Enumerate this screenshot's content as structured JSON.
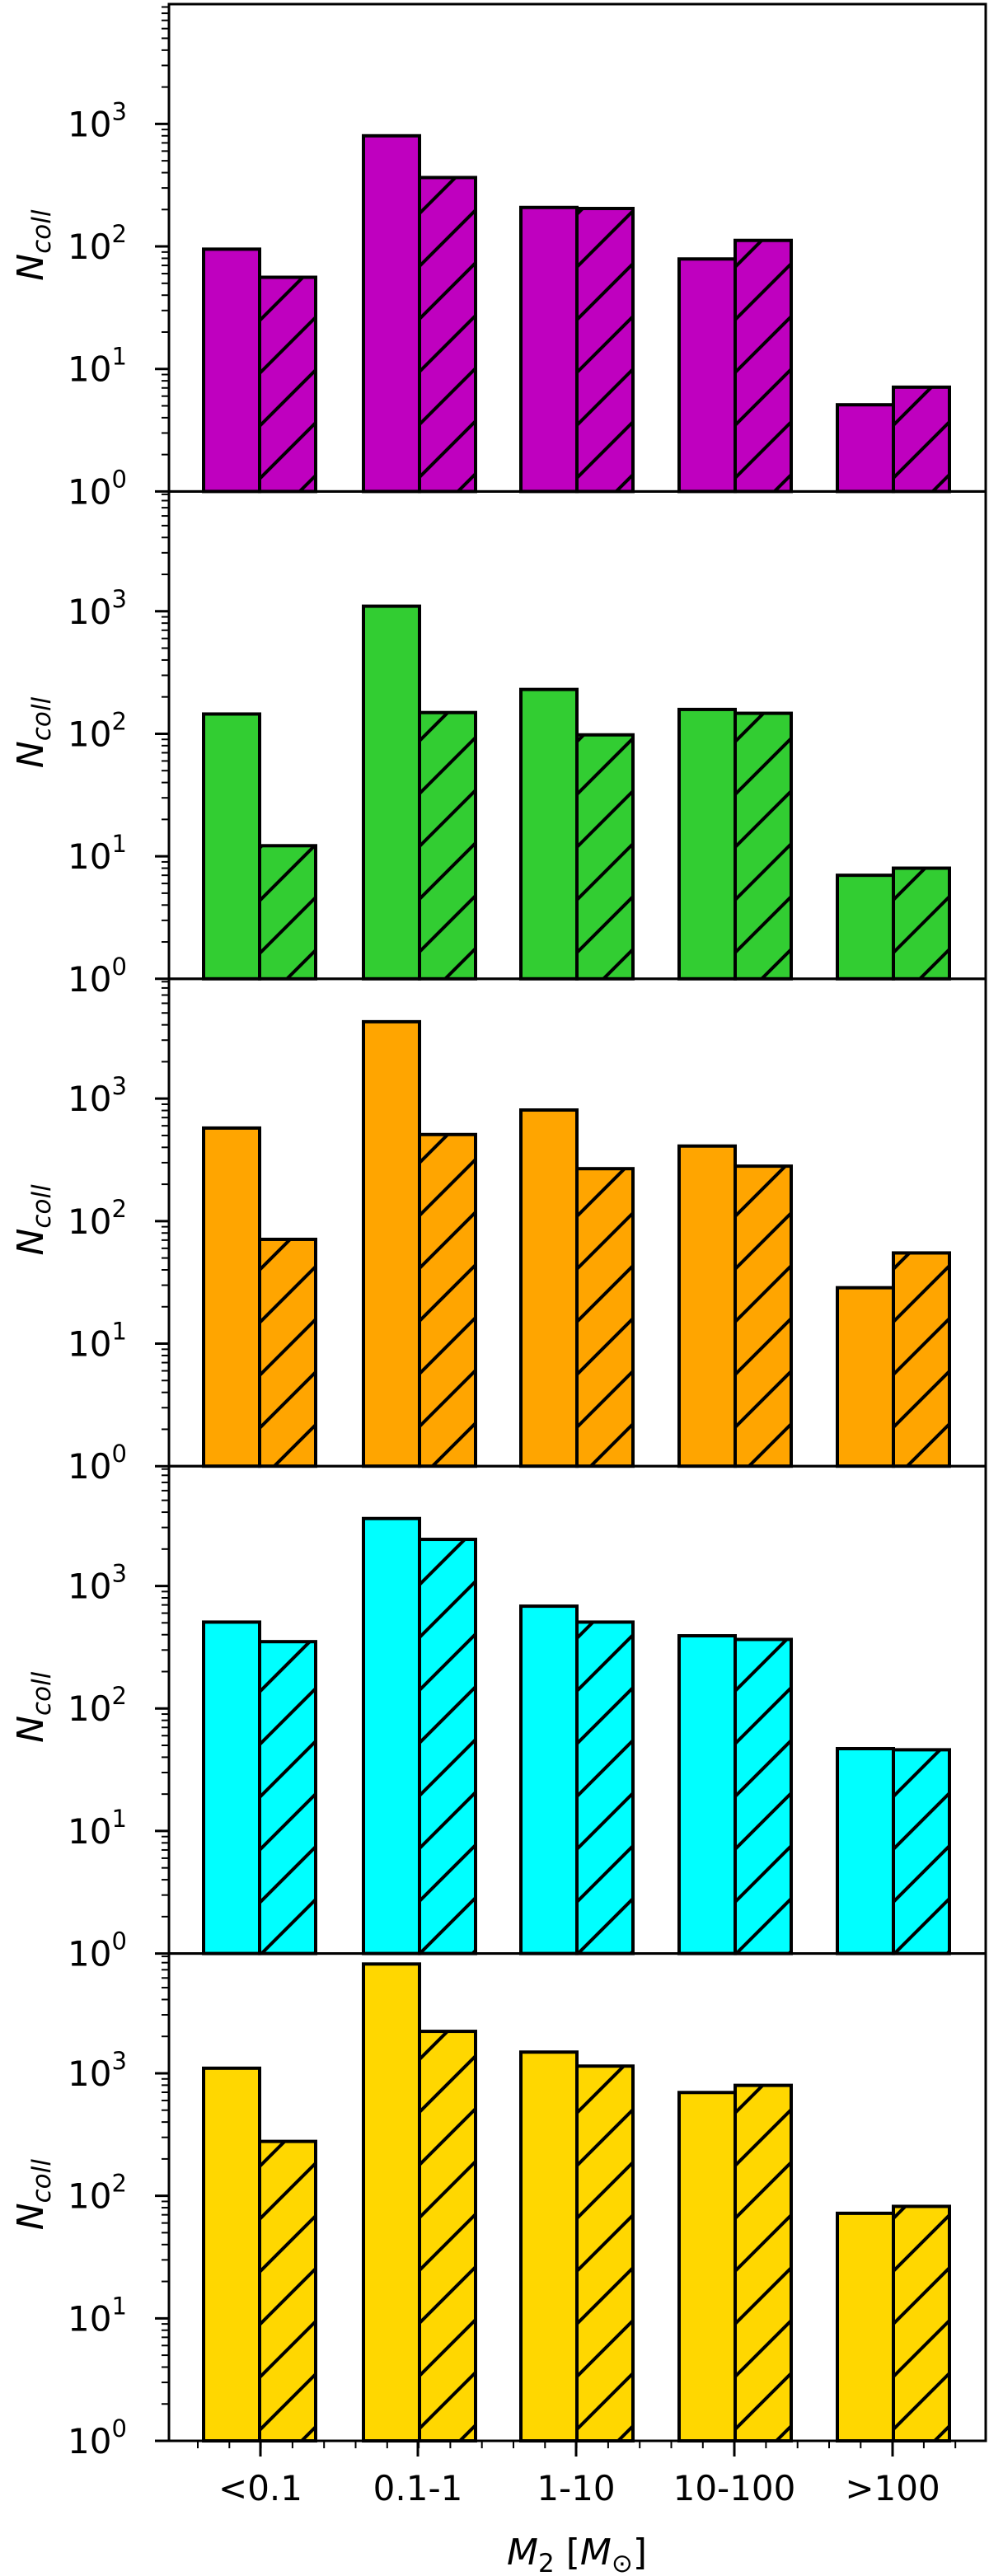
{
  "chart_data": {
    "type": "bar",
    "layout": "5 vertically stacked panels sharing x-axis, log-scale y",
    "categories": [
      "<0.1",
      "0.1-1",
      "1-10",
      "10-100",
      ">100"
    ],
    "xlabel": "M_2 [M_⊙]",
    "xlabel_parts": {
      "main": "M",
      "sub": "2",
      "bracket_open": " [",
      "unit": "M",
      "unit_sub": "⊙",
      "bracket_close": "]"
    },
    "ylabel": "N_coll",
    "ylabel_parts": {
      "main": "N",
      "sub": "coll"
    },
    "yscale": "log",
    "ylim": [
      1,
      9500
    ],
    "yticks": [
      "10^0",
      "10^1",
      "10^2",
      "10^3"
    ],
    "grid": false,
    "legend": null,
    "series_style": {
      "solid": "filled bar",
      "hatched": "filled bar with '/' hatch"
    },
    "panels": [
      {
        "color": "#BF00BF",
        "series": [
          {
            "name": "solid",
            "values": [
              95,
              800,
              208,
              79,
              5.1
            ]
          },
          {
            "name": "hatched",
            "values": [
              56,
              365,
              204,
              112,
              7.1
            ]
          }
        ]
      },
      {
        "color": "#32CD32",
        "series": [
          {
            "name": "solid",
            "values": [
              145,
              1100,
              230,
              158,
              7.0
            ]
          },
          {
            "name": "hatched",
            "values": [
              12.2,
              149,
              98,
              147,
              8.0
            ]
          }
        ]
      },
      {
        "color": "#FFA500",
        "series": [
          {
            "name": "solid",
            "values": [
              575,
              4240,
              807,
              410,
              28.6
            ]
          },
          {
            "name": "hatched",
            "values": [
              71,
              509,
              268,
              281,
              55
            ]
          }
        ]
      },
      {
        "color": "#00FFFF",
        "series": [
          {
            "name": "solid",
            "values": [
              507,
              3550,
              684,
              392,
              47
            ]
          },
          {
            "name": "hatched",
            "values": [
              351,
              2400,
              507,
              366,
              46
            ]
          }
        ]
      },
      {
        "color": "#FFD700",
        "series": [
          {
            "name": "solid",
            "values": [
              1100,
              7800,
              1490,
              697,
              72
            ]
          },
          {
            "name": "hatched",
            "values": [
              278,
              2200,
              1145,
              797,
              82
            ]
          }
        ]
      }
    ]
  }
}
